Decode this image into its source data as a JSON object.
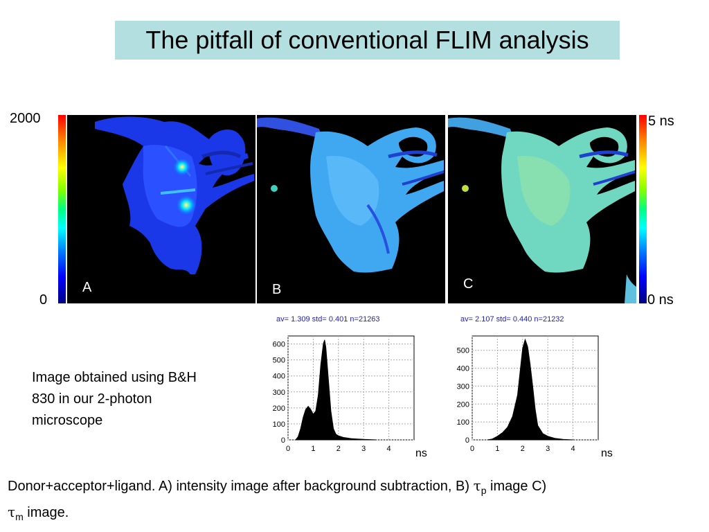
{
  "title": "The pitfall of conventional FLIM analysis",
  "intensity_scale": {
    "max": "2000",
    "min": "0"
  },
  "lifetime_scale": {
    "max": "5 ns",
    "min": "0 ns"
  },
  "panels": [
    {
      "letter": "A"
    },
    {
      "letter": "B"
    },
    {
      "letter": "C"
    }
  ],
  "histograms": [
    {
      "header": "av=   1.309 std=   0.401 n=21263",
      "unit": "ns",
      "chart_data": {
        "type": "area",
        "xlim": [
          0,
          5
        ],
        "ylim": [
          0,
          650
        ],
        "xticks": [
          "0",
          "1",
          "2",
          "3",
          "4"
        ],
        "yticks": [
          "0",
          "100",
          "200",
          "300",
          "400",
          "500",
          "600"
        ],
        "x": [
          0.3,
          0.4,
          0.5,
          0.6,
          0.7,
          0.8,
          0.9,
          1.0,
          1.1,
          1.2,
          1.3,
          1.4,
          1.45,
          1.5,
          1.6,
          1.7,
          1.8,
          1.9,
          2.0,
          2.2,
          2.5,
          3.0,
          3.5
        ],
        "y": [
          0,
          20,
          70,
          140,
          190,
          210,
          190,
          160,
          180,
          280,
          470,
          600,
          625,
          580,
          380,
          180,
          70,
          35,
          25,
          15,
          8,
          3,
          0
        ]
      }
    },
    {
      "header": "av=   2.107 std=   0.440 n=21232",
      "unit": "ns",
      "chart_data": {
        "type": "area",
        "xlim": [
          0,
          5
        ],
        "ylim": [
          0,
          580
        ],
        "xticks": [
          "0",
          "1",
          "2",
          "3",
          "4"
        ],
        "yticks": [
          "0",
          "100",
          "200",
          "300",
          "400",
          "500"
        ],
        "x": [
          0.6,
          0.8,
          1.0,
          1.2,
          1.4,
          1.6,
          1.8,
          1.9,
          2.0,
          2.1,
          2.2,
          2.3,
          2.4,
          2.5,
          2.6,
          2.8,
          3.0,
          3.3,
          3.6,
          4.0
        ],
        "y": [
          0,
          5,
          20,
          40,
          70,
          130,
          250,
          380,
          510,
          560,
          520,
          420,
          300,
          170,
          80,
          35,
          20,
          8,
          3,
          0
        ]
      }
    }
  ],
  "note": "Image obtained using B&H 830 in our 2-photon microscope",
  "caption": {
    "part1": "Donor+acceptor+ligand. A) intensity image after background subtraction, B) ",
    "tau": "τ",
    "sub_p": "p",
    "part2": "  image C) ",
    "sub_m": "m",
    "part3": "  image."
  }
}
